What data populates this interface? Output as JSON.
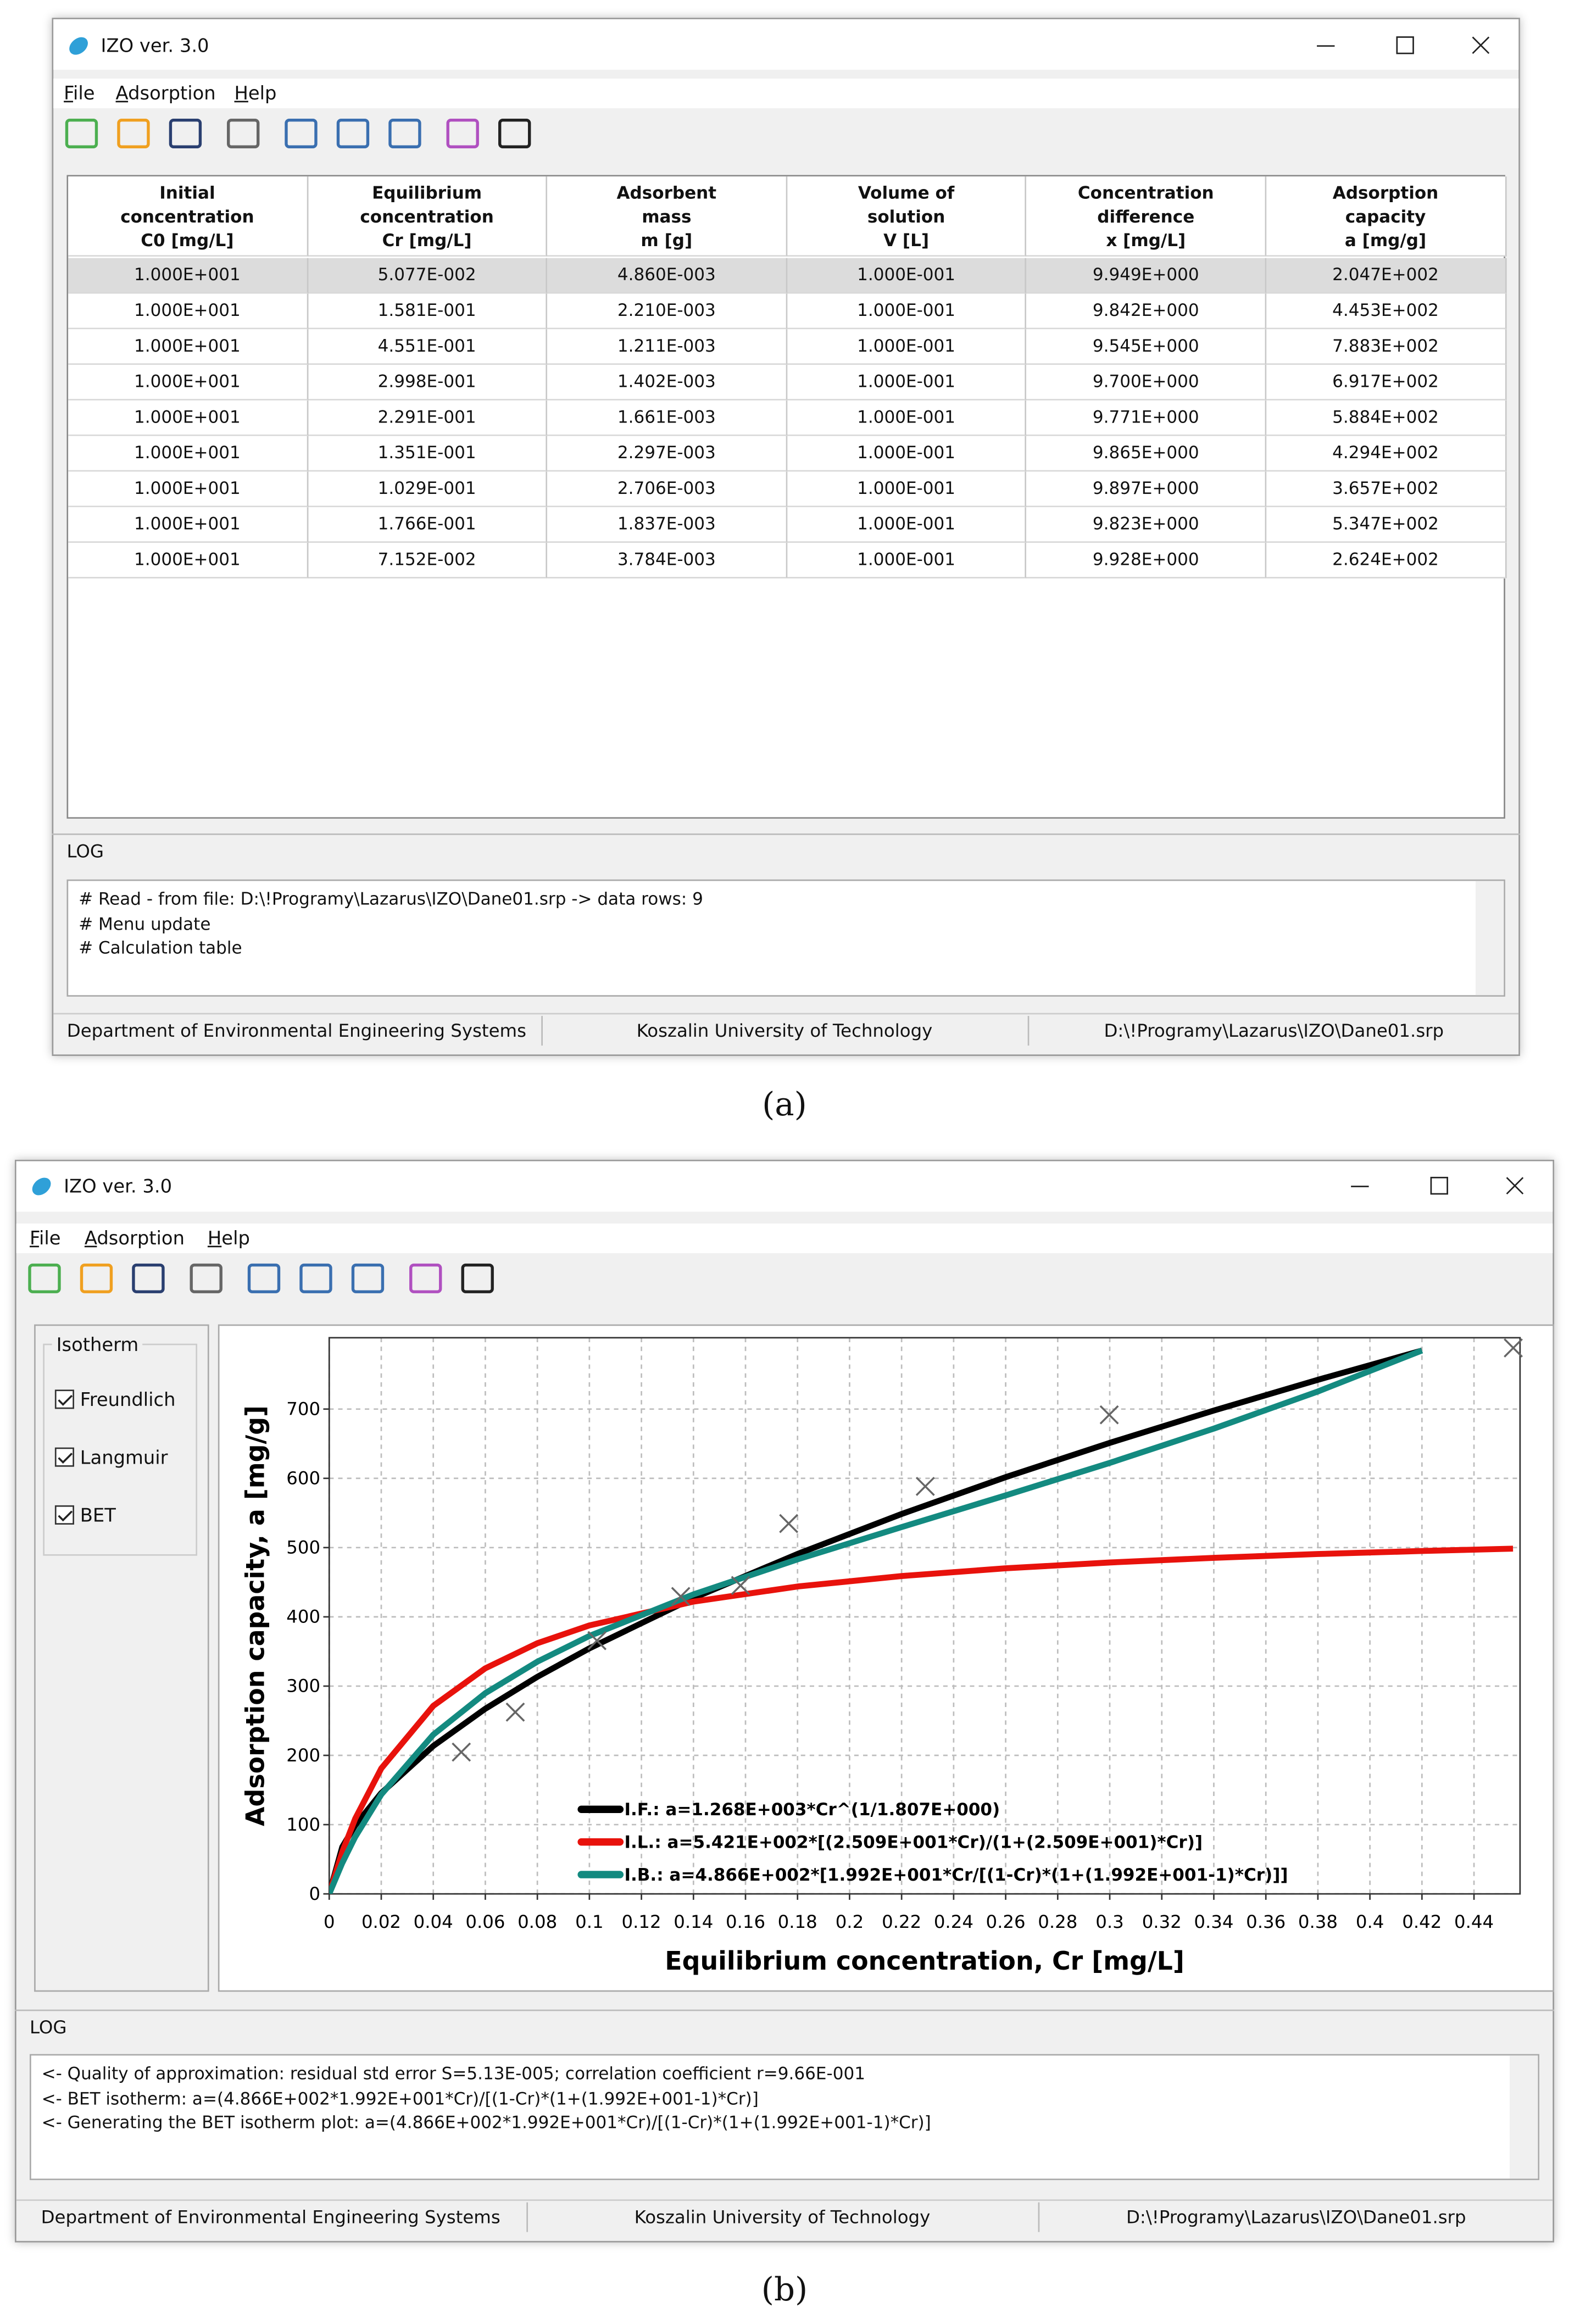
{
  "panel_a": {
    "caption": "(a)",
    "window": {
      "title": "IZO ver. 3.0",
      "menu": [
        "File",
        "Adsorption",
        "Help"
      ],
      "table": {
        "columns": [
          [
            "Initial",
            "concentration",
            "C0 [mg/L]"
          ],
          [
            "Equilibrium",
            "concentration",
            "Cr [mg/L]"
          ],
          [
            "Adsorbent",
            "mass",
            "m [g]"
          ],
          [
            "Volume of",
            "solution",
            "V [L]"
          ],
          [
            "Concentration",
            "difference",
            "x [mg/L]"
          ],
          [
            "Adsorption",
            "capacity",
            "a [mg/g]"
          ]
        ],
        "rows": [
          [
            "1.000E+001",
            "5.077E-002",
            "4.860E-003",
            "1.000E-001",
            "9.949E+000",
            "2.047E+002"
          ],
          [
            "1.000E+001",
            "1.581E-001",
            "2.210E-003",
            "1.000E-001",
            "9.842E+000",
            "4.453E+002"
          ],
          [
            "1.000E+001",
            "4.551E-001",
            "1.211E-003",
            "1.000E-001",
            "9.545E+000",
            "7.883E+002"
          ],
          [
            "1.000E+001",
            "2.998E-001",
            "1.402E-003",
            "1.000E-001",
            "9.700E+000",
            "6.917E+002"
          ],
          [
            "1.000E+001",
            "2.291E-001",
            "1.661E-003",
            "1.000E-001",
            "9.771E+000",
            "5.884E+002"
          ],
          [
            "1.000E+001",
            "1.351E-001",
            "2.297E-003",
            "1.000E-001",
            "9.865E+000",
            "4.294E+002"
          ],
          [
            "1.000E+001",
            "1.029E-001",
            "2.706E-003",
            "1.000E-001",
            "9.897E+000",
            "3.657E+002"
          ],
          [
            "1.000E+001",
            "1.766E-001",
            "1.837E-003",
            "1.000E-001",
            "9.823E+000",
            "5.347E+002"
          ],
          [
            "1.000E+001",
            "7.152E-002",
            "3.784E-003",
            "1.000E-001",
            "9.928E+000",
            "2.624E+002"
          ]
        ]
      },
      "log": {
        "label": "LOG",
        "lines": [
          "# Read - from file: D:\\!Programy\\Lazarus\\IZO\\Dane01.srp -> data rows: 9",
          "# Menu update",
          "# Calculation table"
        ]
      },
      "status": [
        "Department of Environmental Engineering Systems",
        "Koszalin University of Technology",
        "D:\\!Programy\\Lazarus\\IZO\\Dane01.srp"
      ]
    }
  },
  "panel_b": {
    "caption": "(b)",
    "window": {
      "title": "IZO ver. 3.0",
      "menu": [
        "File",
        "Adsorption",
        "Help"
      ],
      "isotherm": {
        "label": "Isotherm",
        "options": [
          "Freundlich",
          "Langmuir",
          "BET"
        ]
      },
      "log": {
        "label": "LOG",
        "lines": [
          "<- Quality of approximation: residual std error S=5.13E-005; correlation coefficient r=9.66E-001",
          "<- BET isotherm: a=(4.866E+002*1.992E+001*Cr)/[(1-Cr)*(1+(1.992E+001-1)*Cr)]",
          "<- Generating the BET isotherm plot: a=(4.866E+002*1.992E+001*Cr)/[(1-Cr)*(1+(1.992E+001-1)*Cr)]"
        ]
      },
      "status": [
        "Department of Environmental Engineering Systems",
        "Koszalin University of Technology",
        "D:\\!Programy\\Lazarus\\IZO\\Dane01.srp"
      ]
    }
  },
  "chart_data": {
    "type": "line",
    "x_label": "Equilibrium concentration, Cr [mg/L]",
    "y_label": "Adsorption capacity, a [mg/g]",
    "xlim": [
      0,
      0.4577
    ],
    "ylim": [
      0,
      803
    ],
    "xticks": [
      0,
      0.02,
      0.04,
      0.06,
      0.08,
      0.1,
      0.12,
      0.14,
      0.16,
      0.18,
      0.2,
      0.22,
      0.24,
      0.26,
      0.28,
      0.3,
      0.32,
      0.34,
      0.36,
      0.38,
      0.4,
      0.42,
      0.44
    ],
    "yticks": [
      0,
      100,
      200,
      300,
      400,
      500,
      600,
      700
    ],
    "grid": true,
    "points": {
      "marker": "x",
      "color": "#666666",
      "x": [
        0.05077,
        0.1581,
        0.4551,
        0.2998,
        0.2291,
        0.1351,
        0.1029,
        0.1766,
        0.07152
      ],
      "values": [
        204.7,
        445.3,
        788.3,
        691.7,
        588.4,
        429.4,
        365.7,
        534.7,
        262.4
      ]
    },
    "series": [
      {
        "name": "I.F.: a=1.268E+003*Cr^(1/1.807E+000)",
        "color": "#000000",
        "x": [
          0,
          0.005,
          0.01,
          0.02,
          0.04,
          0.06,
          0.08,
          0.1,
          0.14,
          0.18,
          0.22,
          0.26,
          0.3,
          0.34,
          0.38,
          0.42
        ],
        "values": [
          0,
          67.6,
          99.1,
          145.6,
          213.6,
          267.3,
          313.4,
          354.5,
          427.2,
          490.8,
          548.5,
          601.7,
          651.2,
          697.9,
          742.3,
          784.5
        ]
      },
      {
        "name": "I.L.: a=5.421E+002*[(2.509E+001*Cr)/(1+(2.509E+001)*Cr)]",
        "color": "#e8120c",
        "x": [
          0,
          0.005,
          0.01,
          0.02,
          0.04,
          0.06,
          0.08,
          0.1,
          0.14,
          0.18,
          0.22,
          0.26,
          0.3,
          0.34,
          0.38,
          0.42,
          0.455
        ],
        "values": [
          0,
          60.4,
          108.7,
          181.1,
          271.5,
          325.7,
          361.9,
          387.6,
          422.0,
          443.8,
          458.9,
          470.1,
          478.5,
          485.2,
          490.7,
          495.1,
          498.5
        ]
      },
      {
        "name": "I.B.: a=4.866E+002*[1.992E+001*Cr/[(1-Cr)*(1+(1.992E+001-1)*Cr)]]",
        "color": "#138a80",
        "x": [
          0,
          0.005,
          0.01,
          0.02,
          0.04,
          0.06,
          0.08,
          0.1,
          0.14,
          0.18,
          0.22,
          0.26,
          0.3,
          0.34,
          0.38,
          0.42
        ],
        "values": [
          0,
          44.5,
          82.3,
          143.5,
          229.9,
          289.8,
          335.3,
          372.4,
          432.4,
          483.0,
          529.6,
          575.4,
          622.3,
          671.8,
          725.4,
          784.6
        ]
      }
    ]
  }
}
